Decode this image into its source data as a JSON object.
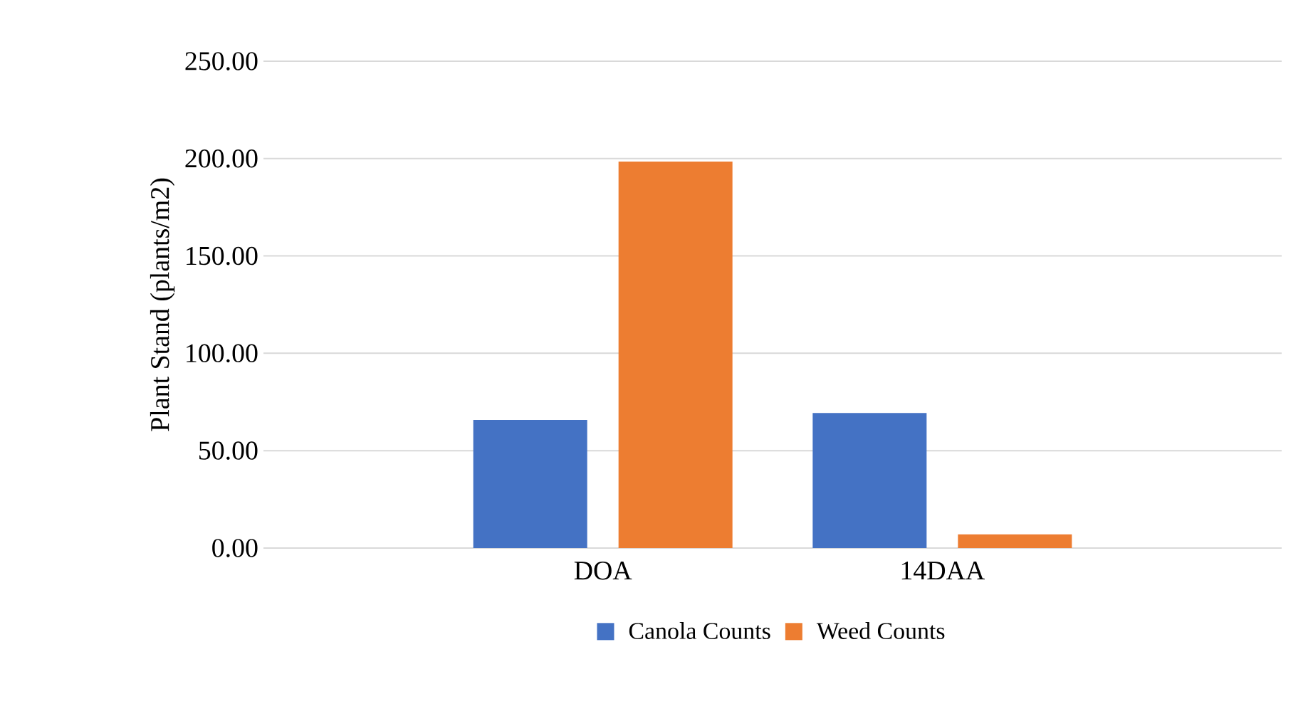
{
  "chart_data": {
    "type": "bar",
    "ylabel": "Plant Stand (plants/m2)",
    "categories": [
      "DOA",
      "14DAA"
    ],
    "series": [
      {
        "name": "Canola Counts",
        "color": "#4472c4",
        "values": [
          65.8,
          69.3
        ]
      },
      {
        "name": "Weed Counts",
        "color": "#ed7d31",
        "values": [
          198.5,
          7.0
        ]
      }
    ],
    "ylim": [
      0,
      250
    ],
    "yticks": [
      {
        "value": 0,
        "label": "0.00"
      },
      {
        "value": 50,
        "label": "50.00"
      },
      {
        "value": 100,
        "label": "100.00"
      },
      {
        "value": 150,
        "label": "150.00"
      },
      {
        "value": 200,
        "label": "200.00"
      },
      {
        "value": 250,
        "label": "250.00"
      }
    ],
    "grid": "y",
    "legend": "bottom"
  }
}
